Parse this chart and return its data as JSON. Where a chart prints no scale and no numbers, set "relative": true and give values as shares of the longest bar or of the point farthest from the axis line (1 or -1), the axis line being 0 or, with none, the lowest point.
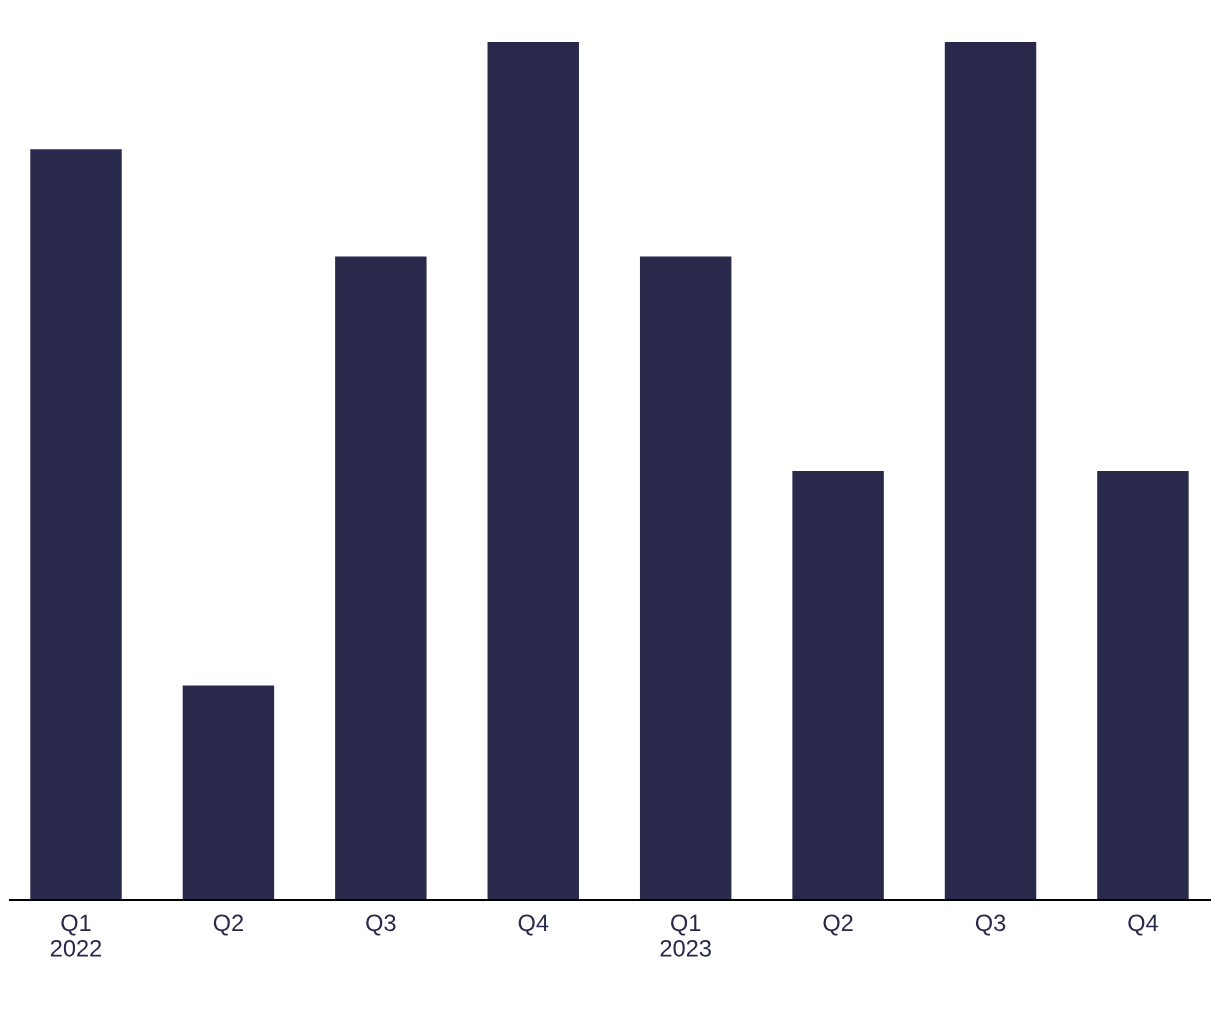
{
  "chart_data": {
    "type": "bar",
    "relative": true,
    "categories": [
      "Q1\n2022",
      "Q2",
      "Q3",
      "Q4",
      "Q1\n2023",
      "Q2",
      "Q3",
      "Q4"
    ],
    "values": [
      0.875,
      0.25,
      0.75,
      1,
      0.75,
      0.5,
      1,
      0.5
    ],
    "color": "#29294b",
    "grid": false,
    "legend": false
  }
}
